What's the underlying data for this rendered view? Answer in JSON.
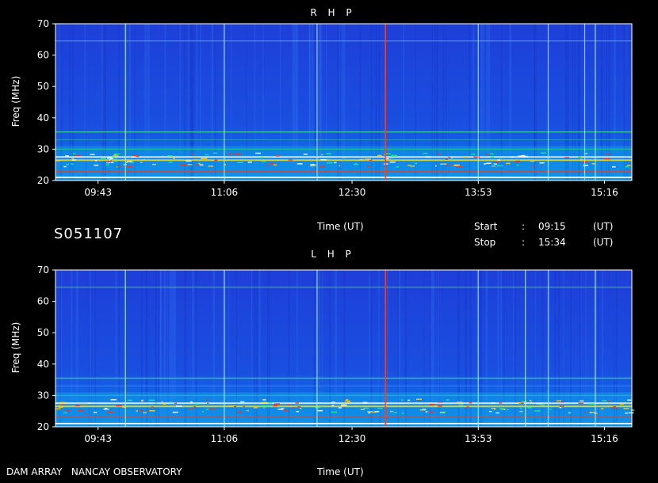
{
  "header_info": {
    "date_code": "S051107",
    "time_label": "Time (UT)",
    "start_label": "Start",
    "stop_label": "Stop",
    "colon": ":",
    "start_time": "09:15",
    "stop_time": "15:34",
    "ut_unit": "(UT)"
  },
  "footer": {
    "instrument": "DAM ARRAY   NANCAY OBSERVATORY",
    "time_label": "Time (UT)"
  },
  "chart_data": [
    {
      "type": "heatmap",
      "title": "R H P",
      "ylabel": "Freq (MHz)",
      "xlabel": "",
      "x_range": [
        "09:15",
        "15:34"
      ],
      "ylim": [
        20,
        70
      ],
      "x_ticks": [
        "09:43",
        "11:06",
        "12:30",
        "13:53",
        "15:16"
      ],
      "y_ticks": [
        "20",
        "30",
        "40",
        "50",
        "60",
        "70"
      ],
      "interference_bands_mhz": [
        21,
        23,
        26.5,
        27.5,
        30,
        33,
        35.5,
        64.5
      ],
      "vertical_streaks": [
        "10:01",
        "11:06",
        "12:07",
        "12:52",
        "13:53",
        "14:39",
        "15:03",
        "15:10"
      ]
    },
    {
      "type": "heatmap",
      "title": "L H P",
      "ylabel": "Freq (MHz)",
      "xlabel": "",
      "x_range": [
        "09:15",
        "15:34"
      ],
      "ylim": [
        20,
        70
      ],
      "x_ticks": [
        "09:43",
        "11:06",
        "12:30",
        "13:53",
        "15:16"
      ],
      "y_ticks": [
        "20",
        "30",
        "40",
        "50",
        "60",
        "70"
      ],
      "interference_bands_mhz": [
        21,
        23,
        26.5,
        27.5,
        30,
        33,
        35.5,
        64.5
      ],
      "vertical_streaks": [
        "10:01",
        "11:06",
        "12:07",
        "12:52",
        "13:53",
        "14:24",
        "14:39",
        "15:10"
      ]
    }
  ]
}
